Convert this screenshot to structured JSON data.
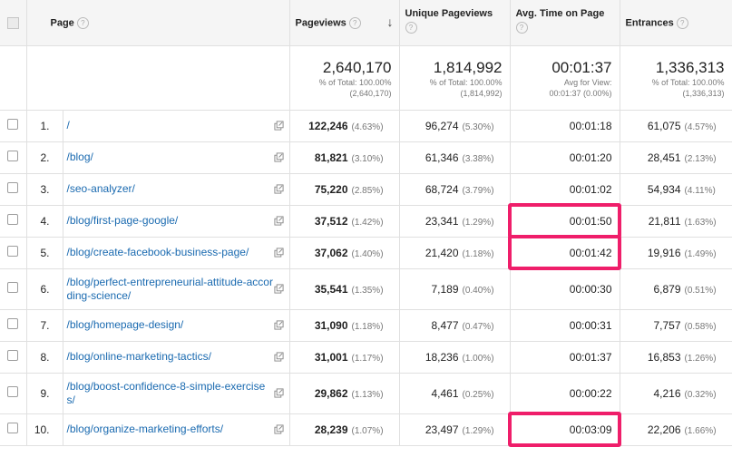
{
  "headers": {
    "page": "Page",
    "pageviews": "Pageviews",
    "unique": "Unique Pageviews",
    "avg_time": "Avg. Time on Page",
    "entrances": "Entrances",
    "help": "?"
  },
  "totals": {
    "pageviews": {
      "value": "2,640,170",
      "line1": "% of Total: 100.00%",
      "line2": "(2,640,170)"
    },
    "unique": {
      "value": "1,814,992",
      "line1": "% of Total: 100.00%",
      "line2": "(1,814,992)"
    },
    "avg_time": {
      "value": "00:01:37",
      "line1": "Avg for View:",
      "line2": "00:01:37 (0.00%)"
    },
    "entrances": {
      "value": "1,336,313",
      "line1": "% of Total: 100.00%",
      "line2": "(1,336,313)"
    }
  },
  "rows": [
    {
      "idx": "1.",
      "page": "/",
      "pv": "122,246",
      "pv_pct": "(4.63%)",
      "up": "96,274",
      "up_pct": "(5.30%)",
      "time": "00:01:18",
      "ent": "61,075",
      "ent_pct": "(4.57%)"
    },
    {
      "idx": "2.",
      "page": "/blog/",
      "pv": "81,821",
      "pv_pct": "(3.10%)",
      "up": "61,346",
      "up_pct": "(3.38%)",
      "time": "00:01:20",
      "ent": "28,451",
      "ent_pct": "(2.13%)"
    },
    {
      "idx": "3.",
      "page": "/seo-analyzer/",
      "pv": "75,220",
      "pv_pct": "(2.85%)",
      "up": "68,724",
      "up_pct": "(3.79%)",
      "time": "00:01:02",
      "ent": "54,934",
      "ent_pct": "(4.11%)"
    },
    {
      "idx": "4.",
      "page": "/blog/first-page-google/",
      "pv": "37,512",
      "pv_pct": "(1.42%)",
      "up": "23,341",
      "up_pct": "(1.29%)",
      "time": "00:01:50",
      "ent": "21,811",
      "ent_pct": "(1.63%)"
    },
    {
      "idx": "5.",
      "page": "/blog/create-facebook-business-page/",
      "pv": "37,062",
      "pv_pct": "(1.40%)",
      "up": "21,420",
      "up_pct": "(1.18%)",
      "time": "00:01:42",
      "ent": "19,916",
      "ent_pct": "(1.49%)"
    },
    {
      "idx": "6.",
      "page": "/blog/perfect-entrepreneurial-attitude-according-science/",
      "pv": "35,541",
      "pv_pct": "(1.35%)",
      "up": "7,189",
      "up_pct": "(0.40%)",
      "time": "00:00:30",
      "ent": "6,879",
      "ent_pct": "(0.51%)"
    },
    {
      "idx": "7.",
      "page": "/blog/homepage-design/",
      "pv": "31,090",
      "pv_pct": "(1.18%)",
      "up": "8,477",
      "up_pct": "(0.47%)",
      "time": "00:00:31",
      "ent": "7,757",
      "ent_pct": "(0.58%)"
    },
    {
      "idx": "8.",
      "page": "/blog/online-marketing-tactics/",
      "pv": "31,001",
      "pv_pct": "(1.17%)",
      "up": "18,236",
      "up_pct": "(1.00%)",
      "time": "00:01:37",
      "ent": "16,853",
      "ent_pct": "(1.26%)"
    },
    {
      "idx": "9.",
      "page": "/blog/boost-confidence-8-simple-exercises/",
      "pv": "29,862",
      "pv_pct": "(1.13%)",
      "up": "4,461",
      "up_pct": "(0.25%)",
      "time": "00:00:22",
      "ent": "4,216",
      "ent_pct": "(0.32%)"
    },
    {
      "idx": "10.",
      "page": "/blog/organize-marketing-efforts/",
      "pv": "28,239",
      "pv_pct": "(1.07%)",
      "up": "23,497",
      "up_pct": "(1.29%)",
      "time": "00:03:09",
      "ent": "22,206",
      "ent_pct": "(1.66%)"
    }
  ],
  "colors": {
    "highlight": "#ef1e6a",
    "link": "#1a6ab0"
  },
  "icons": {
    "sort": "arrow-down-icon",
    "open_page": "external-link-icon"
  },
  "highlighted_rows": [
    3,
    4,
    9
  ]
}
